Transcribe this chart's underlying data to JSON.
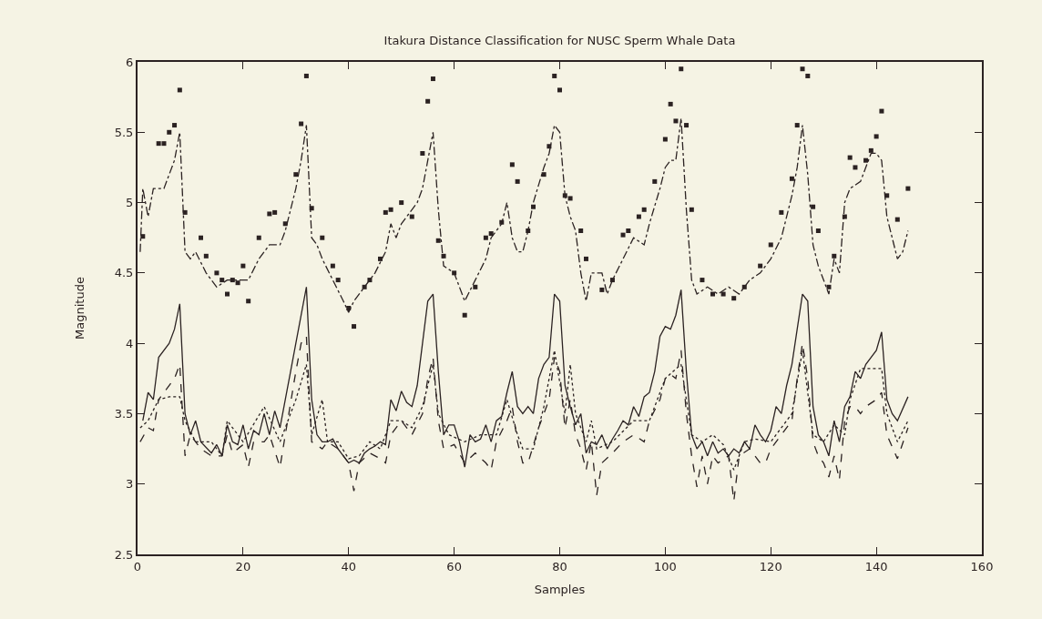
{
  "chart_data": {
    "type": "line",
    "title": "Itakura Distance Classification for NUSC Sperm Whale Data",
    "xlabel": "Samples",
    "ylabel": "Magnitude",
    "xlim": [
      0,
      160
    ],
    "xticks": [
      0,
      20,
      40,
      60,
      80,
      100,
      120,
      140,
      160
    ],
    "ylim": [
      2.5,
      6
    ],
    "yticks": [
      2.5,
      3,
      3.5,
      4,
      4.5,
      5,
      5.5,
      6
    ],
    "grid": false,
    "series": [
      {
        "line_style": "dashdot",
        "color": "#2b2222",
        "x": [
          0.5,
          1,
          2,
          3,
          5,
          7,
          8,
          9,
          10,
          11,
          13,
          15,
          17,
          19,
          21,
          23,
          25,
          27,
          28,
          30,
          31,
          32,
          33,
          34,
          35,
          37,
          39,
          40,
          41,
          43,
          45,
          47,
          48,
          49,
          50,
          52,
          53,
          54,
          55,
          56,
          57,
          58,
          60,
          62,
          64,
          66,
          67,
          68,
          69,
          70,
          71,
          72,
          73,
          74,
          75,
          77,
          78,
          79,
          80,
          81,
          82,
          83,
          84,
          85,
          86,
          88,
          89,
          90,
          92,
          94,
          96,
          97,
          99,
          100,
          101,
          102,
          103,
          104,
          105,
          106,
          108,
          110,
          112,
          114,
          116,
          118,
          120,
          122,
          124,
          125,
          126,
          127,
          128,
          129,
          130,
          131,
          132,
          133,
          134,
          135,
          137,
          139,
          140,
          141,
          142,
          143,
          144,
          145,
          146
        ],
        "values": [
          4.65,
          5.1,
          4.9,
          5.1,
          5.1,
          5.3,
          5.5,
          4.65,
          4.6,
          4.65,
          4.5,
          4.4,
          4.45,
          4.45,
          4.45,
          4.6,
          4.7,
          4.7,
          4.8,
          5.1,
          5.3,
          5.55,
          4.75,
          4.7,
          4.6,
          4.45,
          4.3,
          4.22,
          4.3,
          4.4,
          4.5,
          4.65,
          4.85,
          4.75,
          4.85,
          4.95,
          5.0,
          5.1,
          5.3,
          5.5,
          4.95,
          4.55,
          4.5,
          4.3,
          4.45,
          4.6,
          4.75,
          4.8,
          4.85,
          5.0,
          4.75,
          4.65,
          4.65,
          4.8,
          5.0,
          5.25,
          5.35,
          5.55,
          5.5,
          5.05,
          4.9,
          4.8,
          4.5,
          4.3,
          4.5,
          4.5,
          4.35,
          4.45,
          4.6,
          4.75,
          4.7,
          4.85,
          5.1,
          5.25,
          5.3,
          5.3,
          5.6,
          4.95,
          4.45,
          4.35,
          4.4,
          4.35,
          4.4,
          4.35,
          4.45,
          4.5,
          4.6,
          4.75,
          5.05,
          5.25,
          5.55,
          5.2,
          4.7,
          4.55,
          4.45,
          4.35,
          4.6,
          4.5,
          5.0,
          5.1,
          5.15,
          5.35,
          5.35,
          5.3,
          4.9,
          4.75,
          4.6,
          4.65,
          4.8
        ]
      },
      {
        "type": "scatter",
        "marker": "square",
        "color": "#2b2222",
        "x": [
          1,
          4,
          5,
          6,
          7,
          8,
          9,
          12,
          13,
          15,
          16,
          17,
          18,
          19,
          20,
          21,
          23,
          25,
          26,
          28,
          30,
          31,
          32,
          33,
          35,
          37,
          38,
          40,
          41,
          43,
          44,
          46,
          47,
          48,
          50,
          52,
          54,
          55,
          56,
          57,
          58,
          60,
          62,
          64,
          66,
          67,
          69,
          71,
          72,
          74,
          75,
          77,
          78,
          79,
          80,
          81,
          82,
          84,
          85,
          88,
          90,
          92,
          93,
          95,
          96,
          98,
          100,
          101,
          102,
          103,
          104,
          105,
          107,
          109,
          111,
          113,
          115,
          118,
          120,
          122,
          124,
          125,
          126,
          127,
          128,
          129,
          131,
          132,
          134,
          135,
          136,
          138,
          139,
          140,
          141,
          142,
          144,
          146
        ],
        "values": [
          4.76,
          5.42,
          5.42,
          5.5,
          5.55,
          5.8,
          4.93,
          4.75,
          4.62,
          4.5,
          4.45,
          4.35,
          4.45,
          4.43,
          4.55,
          4.3,
          4.75,
          4.92,
          4.93,
          4.85,
          5.2,
          5.56,
          5.9,
          4.96,
          4.75,
          4.55,
          4.45,
          4.25,
          4.12,
          4.4,
          4.45,
          4.6,
          4.93,
          4.95,
          5.0,
          4.9,
          5.35,
          5.72,
          5.88,
          4.73,
          4.62,
          4.5,
          4.2,
          4.4,
          4.75,
          4.78,
          4.86,
          5.27,
          5.15,
          4.8,
          4.97,
          5.2,
          5.4,
          5.9,
          5.8,
          5.05,
          5.03,
          4.8,
          4.6,
          4.38,
          4.45,
          4.77,
          4.8,
          4.9,
          4.95,
          5.15,
          5.45,
          5.7,
          5.58,
          5.95,
          5.55,
          4.95,
          4.45,
          4.35,
          4.35,
          4.32,
          4.4,
          4.55,
          4.7,
          4.93,
          5.17,
          5.55,
          5.95,
          5.9,
          4.97,
          4.8,
          4.4,
          4.62,
          4.9,
          5.32,
          5.25,
          5.3,
          5.37,
          5.47,
          5.65,
          5.05,
          4.88,
          5.1
        ]
      },
      {
        "line_style": "solid",
        "color": "#2b2222",
        "x": [
          1,
          2,
          3,
          4,
          6,
          7,
          8,
          9,
          10,
          11,
          12,
          14,
          15,
          16,
          17,
          18,
          19,
          20,
          21,
          22,
          23,
          24,
          25,
          26,
          27,
          28,
          29,
          30,
          31,
          32,
          33,
          34,
          35,
          36,
          37,
          38,
          39,
          40,
          41,
          42,
          43,
          44,
          45,
          46,
          47,
          48,
          49,
          50,
          51,
          52,
          53,
          54,
          55,
          56,
          57,
          58,
          59,
          60,
          61,
          62,
          63,
          64,
          65,
          66,
          67,
          68,
          69,
          70,
          71,
          72,
          73,
          74,
          75,
          76,
          77,
          78,
          79,
          80,
          81,
          82,
          83,
          84,
          85,
          86,
          87,
          88,
          89,
          90,
          91,
          92,
          93,
          94,
          95,
          96,
          97,
          98,
          99,
          100,
          101,
          102,
          103,
          104,
          105,
          106,
          107,
          108,
          109,
          110,
          111,
          112,
          113,
          114,
          115,
          116,
          117,
          118,
          119,
          120,
          121,
          122,
          123,
          124,
          125,
          126,
          127,
          128,
          129,
          130,
          131,
          132,
          133,
          134,
          135,
          136,
          137,
          138,
          139,
          140,
          141,
          142,
          143,
          144,
          146
        ],
        "values": [
          3.45,
          3.65,
          3.6,
          3.9,
          4.0,
          4.1,
          4.28,
          3.5,
          3.35,
          3.45,
          3.3,
          3.22,
          3.28,
          3.2,
          3.42,
          3.3,
          3.28,
          3.42,
          3.25,
          3.38,
          3.35,
          3.5,
          3.35,
          3.52,
          3.4,
          3.6,
          3.8,
          4.0,
          4.2,
          4.4,
          3.6,
          3.35,
          3.3,
          3.3,
          3.32,
          3.25,
          3.2,
          3.15,
          3.17,
          3.15,
          3.22,
          3.25,
          3.27,
          3.3,
          3.28,
          3.6,
          3.52,
          3.66,
          3.58,
          3.55,
          3.7,
          4.0,
          4.3,
          4.35,
          3.8,
          3.35,
          3.42,
          3.42,
          3.3,
          3.12,
          3.35,
          3.3,
          3.32,
          3.42,
          3.3,
          3.45,
          3.48,
          3.65,
          3.8,
          3.55,
          3.5,
          3.55,
          3.5,
          3.75,
          3.85,
          3.9,
          4.35,
          4.3,
          3.7,
          3.55,
          3.42,
          3.5,
          3.22,
          3.3,
          3.28,
          3.35,
          3.25,
          3.32,
          3.38,
          3.45,
          3.42,
          3.55,
          3.48,
          3.62,
          3.65,
          3.8,
          4.05,
          4.12,
          4.1,
          4.2,
          4.38,
          3.8,
          3.35,
          3.25,
          3.3,
          3.2,
          3.3,
          3.22,
          3.25,
          3.2,
          3.25,
          3.22,
          3.3,
          3.25,
          3.42,
          3.35,
          3.3,
          3.38,
          3.55,
          3.5,
          3.7,
          3.85,
          4.1,
          4.35,
          4.3,
          3.55,
          3.35,
          3.3,
          3.2,
          3.45,
          3.3,
          3.55,
          3.62,
          3.8,
          3.75,
          3.85,
          3.9,
          3.95,
          4.08,
          3.6,
          3.5,
          3.45,
          3.62
        ]
      },
      {
        "line_style": "dashed",
        "color": "#2b2222",
        "x": [
          0.5,
          2,
          3,
          4,
          5,
          7,
          8,
          9,
          10,
          12,
          14,
          16,
          17,
          18,
          20,
          21,
          22,
          24,
          25,
          27,
          28,
          30,
          31,
          32,
          33,
          35,
          36,
          38,
          40,
          41,
          42,
          44,
          46,
          47,
          48,
          50,
          52,
          54,
          55,
          56,
          57,
          58,
          60,
          62,
          64,
          66,
          67,
          68,
          70,
          71,
          72,
          73,
          74,
          76,
          78,
          79,
          80,
          81,
          82,
          83,
          84,
          85,
          86,
          87,
          88,
          90,
          92,
          94,
          96,
          97,
          99,
          100,
          101,
          102,
          103,
          104,
          105,
          106,
          107,
          108,
          109,
          110,
          112,
          113,
          114,
          116,
          118,
          119,
          120,
          122,
          124,
          125,
          126,
          127,
          128,
          129,
          130,
          131,
          132,
          133,
          134,
          135,
          136,
          137,
          138,
          140,
          141,
          142,
          144,
          146
        ],
        "values": [
          3.3,
          3.4,
          3.38,
          3.6,
          3.65,
          3.75,
          3.85,
          3.2,
          3.35,
          3.25,
          3.2,
          3.2,
          3.35,
          3.22,
          3.28,
          3.12,
          3.3,
          3.3,
          3.35,
          3.12,
          3.35,
          3.8,
          4.0,
          4.05,
          3.3,
          3.25,
          3.3,
          3.25,
          3.15,
          2.95,
          3.15,
          3.22,
          3.18,
          3.15,
          3.35,
          3.45,
          3.35,
          3.5,
          3.75,
          3.9,
          3.45,
          3.25,
          3.28,
          3.15,
          3.22,
          3.15,
          3.1,
          3.3,
          3.45,
          3.55,
          3.3,
          3.15,
          3.15,
          3.4,
          3.6,
          3.9,
          3.8,
          3.4,
          3.6,
          3.35,
          3.25,
          3.1,
          3.3,
          2.92,
          3.15,
          3.22,
          3.3,
          3.35,
          3.3,
          3.45,
          3.6,
          3.75,
          3.78,
          3.75,
          3.95,
          3.5,
          3.2,
          2.98,
          3.2,
          3.0,
          3.2,
          3.15,
          3.2,
          2.88,
          3.2,
          3.25,
          3.15,
          3.15,
          3.25,
          3.35,
          3.45,
          3.75,
          4.0,
          3.75,
          3.3,
          3.2,
          3.15,
          3.05,
          3.2,
          3.03,
          3.45,
          3.55,
          3.55,
          3.5,
          3.55,
          3.6,
          3.65,
          3.35,
          3.18,
          3.4
        ]
      },
      {
        "line_style": "dotted",
        "color": "#2b2222",
        "x": [
          0.5,
          2,
          4,
          6,
          8,
          9,
          11,
          14,
          16,
          17,
          20,
          24,
          27,
          30,
          32,
          33,
          35,
          36,
          38,
          40,
          42,
          44,
          46,
          48,
          50,
          52,
          54,
          56,
          57,
          59,
          62,
          65,
          68,
          70,
          72,
          73,
          75,
          77,
          79,
          81,
          82,
          83,
          85,
          86,
          87,
          90,
          94,
          97,
          100,
          103,
          105,
          107,
          109,
          111,
          113,
          115,
          117,
          120,
          122,
          124,
          126,
          128,
          130,
          132,
          134,
          135,
          137,
          139,
          141,
          142,
          144,
          146
        ],
        "values": [
          3.4,
          3.45,
          3.6,
          3.62,
          3.62,
          3.45,
          3.3,
          3.3,
          3.2,
          3.45,
          3.3,
          3.55,
          3.3,
          3.6,
          3.85,
          3.35,
          3.6,
          3.3,
          3.3,
          3.18,
          3.2,
          3.3,
          3.25,
          3.45,
          3.45,
          3.4,
          3.55,
          3.85,
          3.5,
          3.35,
          3.3,
          3.35,
          3.35,
          3.6,
          3.35,
          3.25,
          3.25,
          3.55,
          3.95,
          3.5,
          3.85,
          3.5,
          3.3,
          3.45,
          3.25,
          3.3,
          3.45,
          3.45,
          3.75,
          3.85,
          3.35,
          3.3,
          3.35,
          3.28,
          3.1,
          3.3,
          3.32,
          3.3,
          3.4,
          3.5,
          3.95,
          3.35,
          3.3,
          3.42,
          3.35,
          3.6,
          3.82,
          3.82,
          3.82,
          3.5,
          3.3,
          3.45
        ]
      }
    ]
  }
}
